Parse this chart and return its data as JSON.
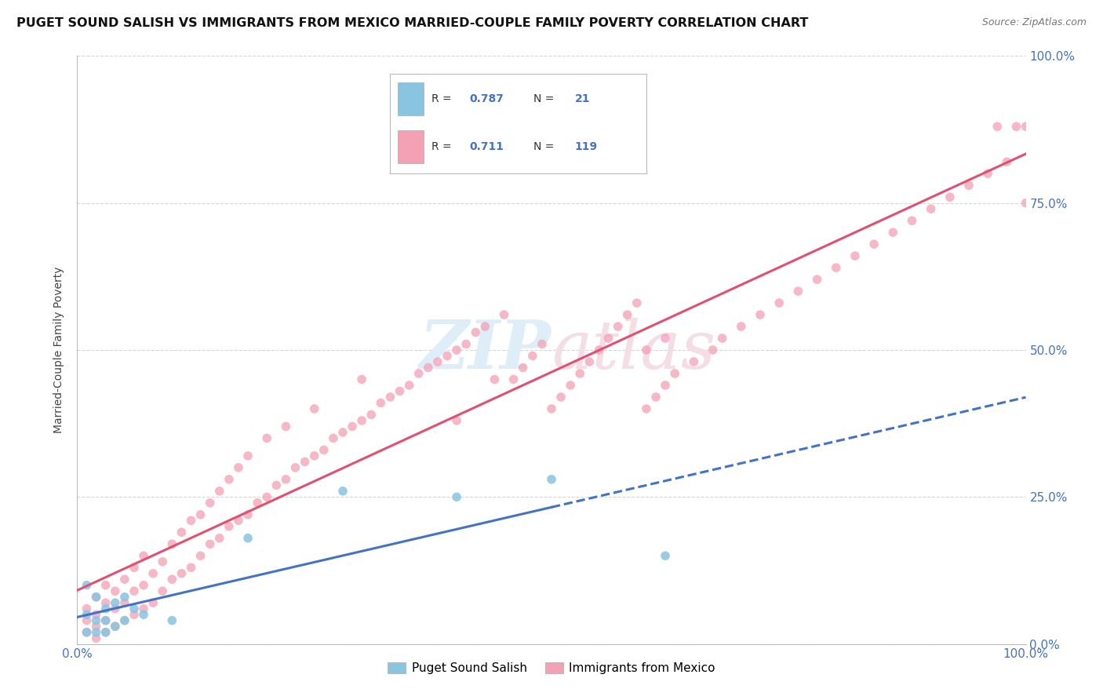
{
  "title": "PUGET SOUND SALISH VS IMMIGRANTS FROM MEXICO MARRIED-COUPLE FAMILY POVERTY CORRELATION CHART",
  "source": "Source: ZipAtlas.com",
  "ylabel": "Married-Couple Family Poverty",
  "blue_color": "#89c4e1",
  "pink_color": "#f4a0b5",
  "blue_line_color": "#4472c4",
  "pink_line_color": "#e05070",
  "watermark_color": "#d8e8f0",
  "watermark_pink": "#f0d0d8",
  "legend_r_blue": "0.787",
  "legend_n_blue": "21",
  "legend_r_pink": "0.711",
  "legend_n_pink": "119",
  "blue_scatter_x": [
    0.01,
    0.01,
    0.01,
    0.02,
    0.02,
    0.02,
    0.03,
    0.03,
    0.03,
    0.04,
    0.04,
    0.05,
    0.05,
    0.06,
    0.07,
    0.1,
    0.18,
    0.28,
    0.4,
    0.5,
    0.62
  ],
  "blue_scatter_y": [
    0.02,
    0.05,
    0.1,
    0.02,
    0.04,
    0.08,
    0.02,
    0.04,
    0.06,
    0.03,
    0.07,
    0.04,
    0.08,
    0.06,
    0.05,
    0.04,
    0.18,
    0.26,
    0.25,
    0.28,
    0.15
  ],
  "pink_scatter_x": [
    0.01,
    0.01,
    0.01,
    0.02,
    0.02,
    0.02,
    0.02,
    0.03,
    0.03,
    0.03,
    0.03,
    0.04,
    0.04,
    0.04,
    0.05,
    0.05,
    0.05,
    0.06,
    0.06,
    0.06,
    0.07,
    0.07,
    0.07,
    0.08,
    0.08,
    0.09,
    0.09,
    0.1,
    0.1,
    0.11,
    0.11,
    0.12,
    0.12,
    0.13,
    0.13,
    0.14,
    0.14,
    0.15,
    0.15,
    0.16,
    0.16,
    0.17,
    0.17,
    0.18,
    0.18,
    0.19,
    0.2,
    0.2,
    0.21,
    0.22,
    0.22,
    0.23,
    0.24,
    0.25,
    0.25,
    0.26,
    0.27,
    0.28,
    0.29,
    0.3,
    0.3,
    0.31,
    0.32,
    0.33,
    0.34,
    0.35,
    0.36,
    0.37,
    0.38,
    0.39,
    0.4,
    0.4,
    0.41,
    0.42,
    0.43,
    0.44,
    0.45,
    0.46,
    0.47,
    0.48,
    0.49,
    0.5,
    0.51,
    0.52,
    0.53,
    0.54,
    0.55,
    0.56,
    0.57,
    0.58,
    0.59,
    0.6,
    0.61,
    0.62,
    0.63,
    0.65,
    0.67,
    0.68,
    0.7,
    0.72,
    0.74,
    0.76,
    0.78,
    0.8,
    0.82,
    0.84,
    0.86,
    0.88,
    0.9,
    0.92,
    0.94,
    0.96,
    0.98,
    1.0,
    1.0,
    0.6,
    0.62,
    0.97,
    0.99
  ],
  "pink_scatter_y": [
    0.02,
    0.04,
    0.06,
    0.01,
    0.03,
    0.05,
    0.08,
    0.02,
    0.04,
    0.07,
    0.1,
    0.03,
    0.06,
    0.09,
    0.04,
    0.07,
    0.11,
    0.05,
    0.09,
    0.13,
    0.06,
    0.1,
    0.15,
    0.07,
    0.12,
    0.09,
    0.14,
    0.11,
    0.17,
    0.12,
    0.19,
    0.13,
    0.21,
    0.15,
    0.22,
    0.17,
    0.24,
    0.18,
    0.26,
    0.2,
    0.28,
    0.21,
    0.3,
    0.22,
    0.32,
    0.24,
    0.25,
    0.35,
    0.27,
    0.28,
    0.37,
    0.3,
    0.31,
    0.32,
    0.4,
    0.33,
    0.35,
    0.36,
    0.37,
    0.38,
    0.45,
    0.39,
    0.41,
    0.42,
    0.43,
    0.44,
    0.46,
    0.47,
    0.48,
    0.49,
    0.5,
    0.38,
    0.51,
    0.53,
    0.54,
    0.45,
    0.56,
    0.45,
    0.47,
    0.49,
    0.51,
    0.4,
    0.42,
    0.44,
    0.46,
    0.48,
    0.5,
    0.52,
    0.54,
    0.56,
    0.58,
    0.4,
    0.42,
    0.44,
    0.46,
    0.48,
    0.5,
    0.52,
    0.54,
    0.56,
    0.58,
    0.6,
    0.62,
    0.64,
    0.66,
    0.68,
    0.7,
    0.72,
    0.74,
    0.76,
    0.78,
    0.8,
    0.82,
    0.75,
    0.88,
    0.5,
    0.52,
    0.88,
    0.88
  ],
  "background_color": "#ffffff",
  "grid_color": "#cccccc",
  "tick_color": "#4472c4",
  "axis_color": "#999999"
}
